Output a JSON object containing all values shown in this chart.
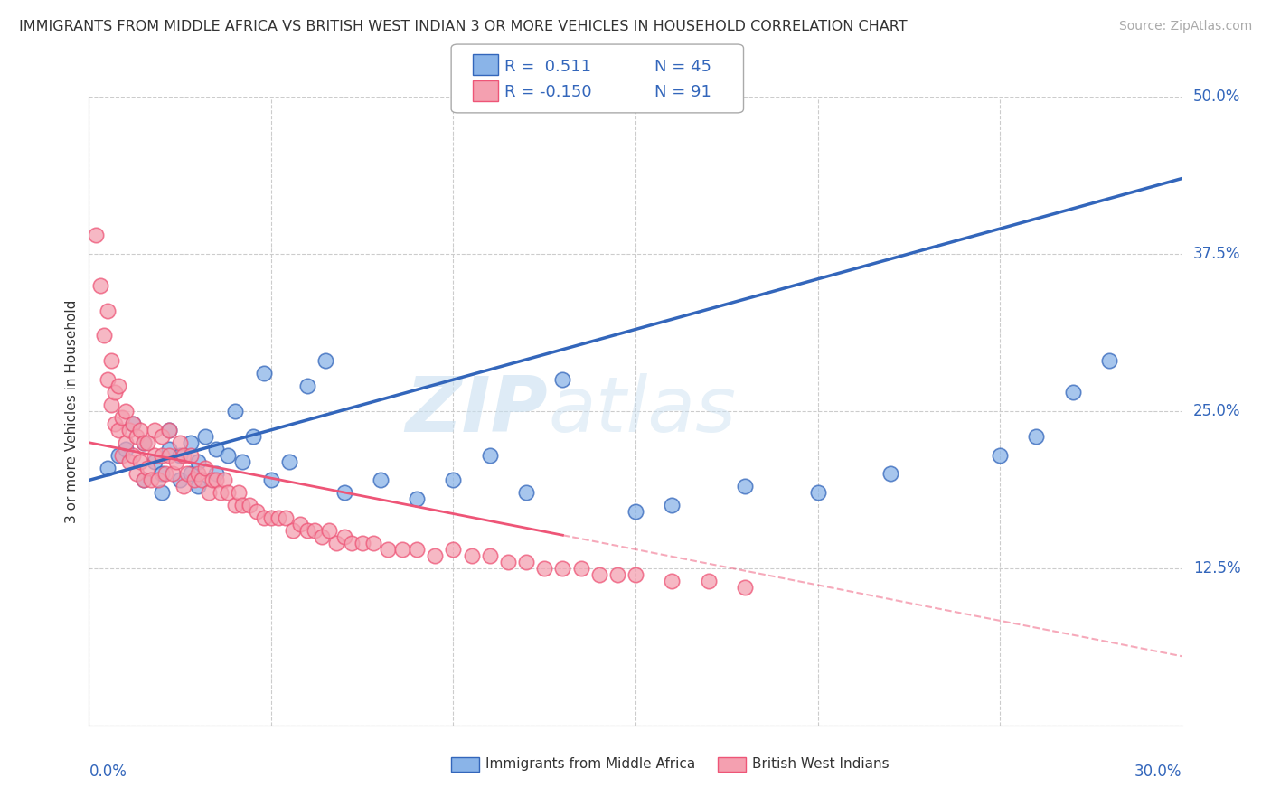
{
  "title": "IMMIGRANTS FROM MIDDLE AFRICA VS BRITISH WEST INDIAN 3 OR MORE VEHICLES IN HOUSEHOLD CORRELATION CHART",
  "source": "Source: ZipAtlas.com",
  "ylabel_label": "3 or more Vehicles in Household",
  "xmin": 0.0,
  "xmax": 0.3,
  "ymin": 0.0,
  "ymax": 0.5,
  "legend_r1": "R =  0.511",
  "legend_n1": "N = 45",
  "legend_r2": "R = -0.150",
  "legend_n2": "N = 91",
  "color_blue": "#8AB4E8",
  "color_pink": "#F4A0B0",
  "color_blue_line": "#3366BB",
  "color_pink_line": "#EE5577",
  "watermark_zip": "ZIP",
  "watermark_atlas": "atlas",
  "blue_points_x": [
    0.005,
    0.008,
    0.01,
    0.012,
    0.015,
    0.015,
    0.018,
    0.02,
    0.02,
    0.022,
    0.022,
    0.025,
    0.025,
    0.028,
    0.028,
    0.03,
    0.03,
    0.032,
    0.035,
    0.035,
    0.038,
    0.04,
    0.042,
    0.045,
    0.048,
    0.05,
    0.055,
    0.06,
    0.065,
    0.07,
    0.08,
    0.09,
    0.1,
    0.11,
    0.12,
    0.13,
    0.15,
    0.16,
    0.18,
    0.2,
    0.22,
    0.25,
    0.26,
    0.27,
    0.28
  ],
  "blue_points_y": [
    0.205,
    0.215,
    0.22,
    0.24,
    0.195,
    0.225,
    0.21,
    0.185,
    0.2,
    0.22,
    0.235,
    0.195,
    0.215,
    0.2,
    0.225,
    0.19,
    0.21,
    0.23,
    0.2,
    0.22,
    0.215,
    0.25,
    0.21,
    0.23,
    0.28,
    0.195,
    0.21,
    0.27,
    0.29,
    0.185,
    0.195,
    0.18,
    0.195,
    0.215,
    0.185,
    0.275,
    0.17,
    0.175,
    0.19,
    0.185,
    0.2,
    0.215,
    0.23,
    0.265,
    0.29
  ],
  "pink_points_x": [
    0.002,
    0.003,
    0.004,
    0.005,
    0.005,
    0.006,
    0.006,
    0.007,
    0.007,
    0.008,
    0.008,
    0.009,
    0.009,
    0.01,
    0.01,
    0.011,
    0.011,
    0.012,
    0.012,
    0.013,
    0.013,
    0.014,
    0.014,
    0.015,
    0.015,
    0.016,
    0.016,
    0.017,
    0.018,
    0.018,
    0.019,
    0.02,
    0.02,
    0.021,
    0.022,
    0.022,
    0.023,
    0.024,
    0.025,
    0.026,
    0.026,
    0.027,
    0.028,
    0.029,
    0.03,
    0.031,
    0.032,
    0.033,
    0.034,
    0.035,
    0.036,
    0.037,
    0.038,
    0.04,
    0.041,
    0.042,
    0.044,
    0.046,
    0.048,
    0.05,
    0.052,
    0.054,
    0.056,
    0.058,
    0.06,
    0.062,
    0.064,
    0.066,
    0.068,
    0.07,
    0.072,
    0.075,
    0.078,
    0.082,
    0.086,
    0.09,
    0.095,
    0.1,
    0.105,
    0.11,
    0.115,
    0.12,
    0.125,
    0.13,
    0.135,
    0.14,
    0.145,
    0.15,
    0.16,
    0.17,
    0.18
  ],
  "pink_points_y": [
    0.39,
    0.35,
    0.31,
    0.275,
    0.33,
    0.255,
    0.29,
    0.24,
    0.265,
    0.235,
    0.27,
    0.215,
    0.245,
    0.225,
    0.25,
    0.21,
    0.235,
    0.215,
    0.24,
    0.2,
    0.23,
    0.21,
    0.235,
    0.195,
    0.225,
    0.205,
    0.225,
    0.195,
    0.215,
    0.235,
    0.195,
    0.215,
    0.23,
    0.2,
    0.215,
    0.235,
    0.2,
    0.21,
    0.225,
    0.19,
    0.215,
    0.2,
    0.215,
    0.195,
    0.2,
    0.195,
    0.205,
    0.185,
    0.195,
    0.195,
    0.185,
    0.195,
    0.185,
    0.175,
    0.185,
    0.175,
    0.175,
    0.17,
    0.165,
    0.165,
    0.165,
    0.165,
    0.155,
    0.16,
    0.155,
    0.155,
    0.15,
    0.155,
    0.145,
    0.15,
    0.145,
    0.145,
    0.145,
    0.14,
    0.14,
    0.14,
    0.135,
    0.14,
    0.135,
    0.135,
    0.13,
    0.13,
    0.125,
    0.125,
    0.125,
    0.12,
    0.12,
    0.12,
    0.115,
    0.115,
    0.11
  ],
  "blue_line_x0": 0.0,
  "blue_line_x1": 0.3,
  "blue_line_y0": 0.195,
  "blue_line_y1": 0.435,
  "pink_line_x0": 0.0,
  "pink_line_solid_x1": 0.13,
  "pink_line_x1": 0.3,
  "pink_line_y0": 0.225,
  "pink_line_y1": 0.055
}
